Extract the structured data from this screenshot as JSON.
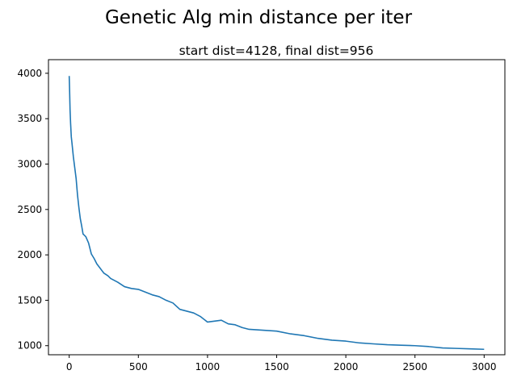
{
  "chart_data": {
    "type": "line",
    "suptitle": "Genetic Alg min distance per iter",
    "title": "start dist=4128, final dist=956",
    "xlabel": "",
    "ylabel": "",
    "xlim": [
      -150,
      3150
    ],
    "ylim": [
      900,
      4150
    ],
    "xticks": [
      0,
      500,
      1000,
      1500,
      2000,
      2500,
      3000
    ],
    "yticks": [
      1000,
      1500,
      2000,
      2500,
      3000,
      3500,
      4000
    ],
    "grid": false,
    "legend": "none",
    "series": [
      {
        "color": "#1f77b4",
        "x": [
          0,
          3,
          6,
          10,
          15,
          20,
          30,
          40,
          50,
          60,
          70,
          80,
          90,
          100,
          120,
          140,
          160,
          180,
          200,
          220,
          250,
          280,
          300,
          350,
          400,
          450,
          500,
          550,
          600,
          650,
          700,
          750,
          800,
          850,
          900,
          950,
          1000,
          1050,
          1100,
          1150,
          1200,
          1250,
          1300,
          1400,
          1500,
          1600,
          1700,
          1800,
          1900,
          2000,
          2100,
          2200,
          2300,
          2400,
          2500,
          2600,
          2700,
          2800,
          2900,
          3000
        ],
        "y": [
          3970,
          3800,
          3600,
          3450,
          3300,
          3230,
          3080,
          2960,
          2840,
          2660,
          2520,
          2400,
          2320,
          2230,
          2200,
          2130,
          2010,
          1960,
          1900,
          1860,
          1800,
          1770,
          1740,
          1700,
          1650,
          1630,
          1620,
          1590,
          1560,
          1540,
          1500,
          1470,
          1400,
          1380,
          1360,
          1320,
          1260,
          1270,
          1280,
          1240,
          1230,
          1200,
          1180,
          1170,
          1160,
          1130,
          1110,
          1080,
          1060,
          1050,
          1030,
          1020,
          1010,
          1005,
          1000,
          990,
          975,
          970,
          965,
          960
        ]
      }
    ]
  }
}
